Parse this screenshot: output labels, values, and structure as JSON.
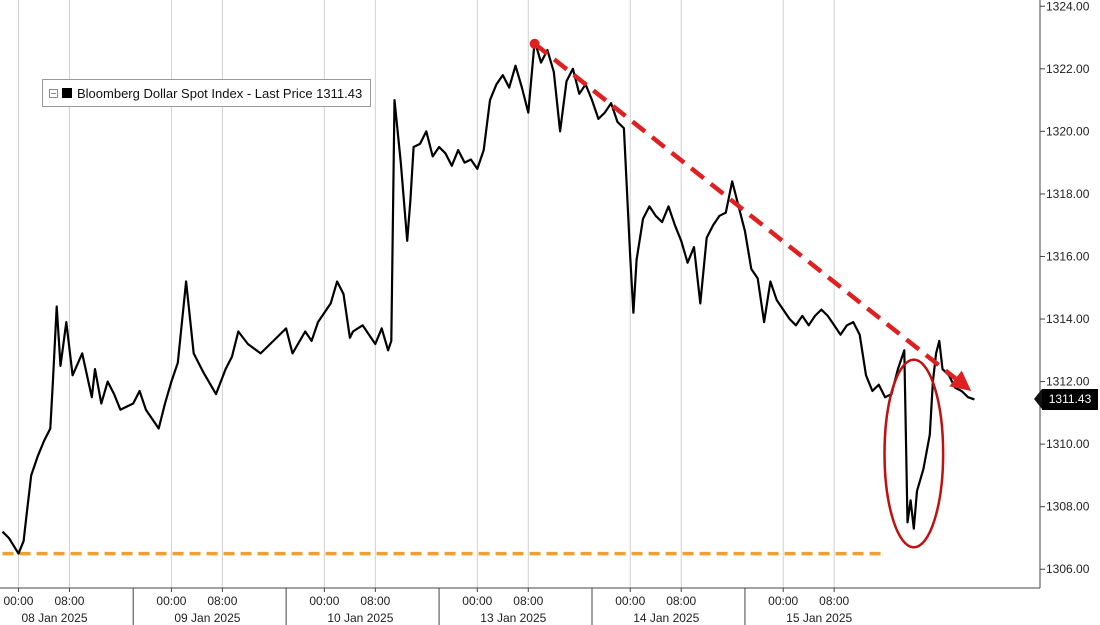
{
  "chart_data": {
    "type": "line",
    "legend": {
      "label": "Bloomberg Dollar Spot Index - Last Price 1311.43",
      "placement": "top-left"
    },
    "last_price_label": "1311.43",
    "series": [
      {
        "name": "Bloomberg Dollar Spot Index - Last Price",
        "color": "#000000",
        "points": [
          [
            -2.5,
            1307.2
          ],
          [
            -1.5,
            1307.0
          ],
          [
            0.0,
            1306.5
          ],
          [
            0.8,
            1306.9
          ],
          [
            1.3,
            1307.8
          ],
          [
            2.0,
            1309.0
          ],
          [
            3.0,
            1309.6
          ],
          [
            4.0,
            1310.1
          ],
          [
            5.0,
            1310.5
          ],
          [
            5.4,
            1312.0
          ],
          [
            6.0,
            1314.4
          ],
          [
            6.6,
            1312.5
          ],
          [
            7.5,
            1313.9
          ],
          [
            8.5,
            1312.2
          ],
          [
            10.0,
            1312.9
          ],
          [
            11.5,
            1311.5
          ],
          [
            12.0,
            1312.4
          ],
          [
            13.0,
            1311.3
          ],
          [
            14.0,
            1312.0
          ],
          [
            15.0,
            1311.6
          ],
          [
            16.0,
            1311.1
          ],
          [
            18.0,
            1311.3
          ],
          [
            19.0,
            1311.7
          ],
          [
            20.0,
            1311.1
          ],
          [
            21.0,
            1310.8
          ],
          [
            22.0,
            1310.5
          ],
          [
            23.0,
            1311.3
          ],
          [
            24.0,
            1312.0
          ],
          [
            25.0,
            1312.6
          ],
          [
            26.3,
            1315.2
          ],
          [
            27.5,
            1312.9
          ],
          [
            29.0,
            1312.3
          ],
          [
            31.0,
            1311.6
          ],
          [
            32.5,
            1312.4
          ],
          [
            33.5,
            1312.8
          ],
          [
            34.5,
            1313.6
          ],
          [
            36.0,
            1313.2
          ],
          [
            38.0,
            1312.9
          ],
          [
            40.0,
            1313.3
          ],
          [
            42.0,
            1313.7
          ],
          [
            43.0,
            1312.9
          ],
          [
            45.0,
            1313.6
          ],
          [
            46.0,
            1313.3
          ],
          [
            47.0,
            1313.9
          ],
          [
            49.0,
            1314.5
          ],
          [
            50.0,
            1315.2
          ],
          [
            51.0,
            1314.8
          ],
          [
            52.0,
            1313.4
          ],
          [
            52.5,
            1313.6
          ],
          [
            54.0,
            1313.8
          ],
          [
            56.0,
            1313.2
          ],
          [
            57.0,
            1313.7
          ],
          [
            58.0,
            1313.0
          ],
          [
            58.5,
            1313.3
          ],
          [
            59.0,
            1321.0
          ],
          [
            60.0,
            1319.0
          ],
          [
            61.0,
            1316.5
          ],
          [
            61.5,
            1317.8
          ],
          [
            62.0,
            1319.5
          ],
          [
            63.0,
            1319.6
          ],
          [
            64.0,
            1320.0
          ],
          [
            65.0,
            1319.2
          ],
          [
            66.0,
            1319.5
          ],
          [
            67.0,
            1319.3
          ],
          [
            68.0,
            1318.9
          ],
          [
            69.0,
            1319.4
          ],
          [
            70.0,
            1319.0
          ],
          [
            71.0,
            1319.1
          ],
          [
            72.0,
            1318.8
          ],
          [
            73.0,
            1319.4
          ],
          [
            74.0,
            1321.0
          ],
          [
            75.0,
            1321.5
          ],
          [
            76.0,
            1321.8
          ],
          [
            77.0,
            1321.4
          ],
          [
            78.0,
            1322.1
          ],
          [
            79.0,
            1321.4
          ],
          [
            80.0,
            1320.6
          ],
          [
            81.0,
            1322.9
          ],
          [
            82.0,
            1322.2
          ],
          [
            83.0,
            1322.6
          ],
          [
            84.0,
            1321.9
          ],
          [
            85.0,
            1320.0
          ],
          [
            86.0,
            1321.6
          ],
          [
            87.0,
            1322.0
          ],
          [
            88.0,
            1321.2
          ],
          [
            89.0,
            1321.5
          ],
          [
            90.0,
            1321.0
          ],
          [
            91.0,
            1320.4
          ],
          [
            92.0,
            1320.6
          ],
          [
            93.0,
            1320.9
          ],
          [
            94.0,
            1320.3
          ],
          [
            95.0,
            1320.1
          ],
          [
            96.0,
            1316.0
          ],
          [
            96.5,
            1314.2
          ],
          [
            97.0,
            1315.9
          ],
          [
            98.0,
            1317.2
          ],
          [
            99.0,
            1317.6
          ],
          [
            100.0,
            1317.3
          ],
          [
            101.0,
            1317.1
          ],
          [
            102.0,
            1317.6
          ],
          [
            103.0,
            1317.0
          ],
          [
            104.0,
            1316.5
          ],
          [
            105.0,
            1315.8
          ],
          [
            106.0,
            1316.3
          ],
          [
            107.0,
            1314.5
          ],
          [
            108.0,
            1316.6
          ],
          [
            109.0,
            1317.0
          ],
          [
            110.0,
            1317.3
          ],
          [
            111.0,
            1317.4
          ],
          [
            112.0,
            1318.4
          ],
          [
            113.0,
            1317.6
          ],
          [
            114.0,
            1316.8
          ],
          [
            115.0,
            1315.6
          ],
          [
            116.0,
            1315.3
          ],
          [
            117.0,
            1313.9
          ],
          [
            118.0,
            1315.2
          ],
          [
            119.0,
            1314.6
          ],
          [
            120.0,
            1314.3
          ],
          [
            121.0,
            1314.0
          ],
          [
            122.0,
            1313.8
          ],
          [
            123.0,
            1314.1
          ],
          [
            124.0,
            1313.8
          ],
          [
            125.0,
            1314.1
          ],
          [
            126.0,
            1314.3
          ],
          [
            127.0,
            1314.1
          ],
          [
            128.0,
            1313.8
          ],
          [
            129.0,
            1313.5
          ],
          [
            130.0,
            1313.8
          ],
          [
            131.0,
            1313.9
          ],
          [
            132.0,
            1313.5
          ],
          [
            133.0,
            1312.2
          ],
          [
            134.0,
            1311.7
          ],
          [
            135.0,
            1311.9
          ],
          [
            136.0,
            1311.5
          ],
          [
            137.0,
            1311.6
          ],
          [
            138.0,
            1312.4
          ],
          [
            139.0,
            1313.0
          ],
          [
            139.5,
            1307.5
          ],
          [
            140.0,
            1308.2
          ],
          [
            140.5,
            1307.3
          ],
          [
            141.0,
            1308.5
          ],
          [
            142.0,
            1309.2
          ],
          [
            143.0,
            1310.3
          ],
          [
            143.5,
            1312.0
          ],
          [
            144.0,
            1312.9
          ],
          [
            144.5,
            1313.3
          ],
          [
            145.0,
            1312.4
          ],
          [
            146.0,
            1312.2
          ],
          [
            147.0,
            1311.8
          ],
          [
            148.0,
            1311.7
          ],
          [
            149.0,
            1311.5
          ],
          [
            150.0,
            1311.43
          ]
        ]
      }
    ],
    "y_axis": {
      "position": "right",
      "ylim": [
        1305.4,
        1324.2
      ],
      "ticks": [
        1306,
        1308,
        1310,
        1312,
        1314,
        1316,
        1318,
        1320,
        1322,
        1324
      ],
      "tick_labels": [
        "1306.00",
        "1308.00",
        "1310.00",
        "1312.00",
        "1314.00",
        "1316.00",
        "1318.00",
        "1320.00",
        "1322.00",
        "1324.00"
      ]
    },
    "x_axis": {
      "unit": "hours since 08 Jan 2025 00:00",
      "xlim": [
        -2.9,
        160.3
      ],
      "time_ticks": [
        0,
        8,
        24,
        32,
        48,
        56,
        72,
        80,
        96,
        104,
        120,
        128
      ],
      "time_tick_labels": [
        "00:00",
        "08:00",
        "00:00",
        "08:00",
        "00:00",
        "08:00",
        "00:00",
        "08:00",
        "00:00",
        "08:00",
        "00:00",
        "08:00"
      ],
      "day_ticks": [
        0,
        24,
        48,
        72,
        96,
        120
      ],
      "day_labels": [
        "08 Jan 2025",
        "09 Jan 2025",
        "10 Jan 2025",
        "13 Jan 2025",
        "14 Jan 2025",
        "15 Jan 2025"
      ]
    },
    "grid": {
      "vertical": true,
      "horizontal": false,
      "color": "#d0d0d0"
    },
    "annotations": [
      {
        "type": "dashed-arrow",
        "color": "#e02020",
        "from": [
          81.0,
          1322.8
        ],
        "to": [
          149.5,
          1311.7
        ]
      },
      {
        "type": "dashed-hline",
        "color": "#f0a030",
        "y": 1306.5,
        "x_from": -2.5,
        "x_to": 136.0
      },
      {
        "type": "ellipse",
        "color": "#c01010",
        "center": [
          140.5,
          1309.7
        ],
        "rx_hours": 4.6,
        "ry_value": 3.0
      }
    ]
  }
}
